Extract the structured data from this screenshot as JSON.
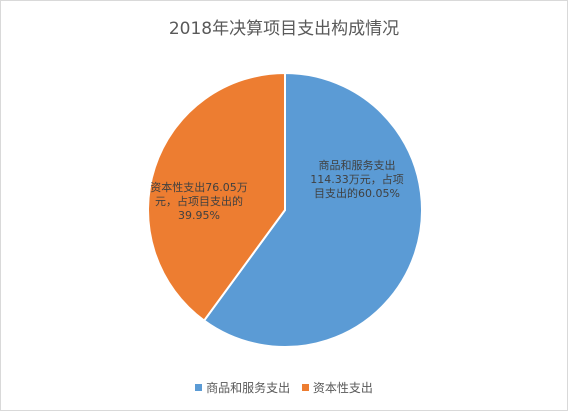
{
  "chart_data": {
    "type": "pie",
    "title": "2018年决算项目支出构成情况",
    "categories": [
      "商品和服务支出",
      "资本性支出"
    ],
    "values": [
      114.33,
      76.05
    ],
    "percentages": [
      60.05,
      39.95
    ],
    "unit": "万元",
    "colors": [
      "#5b9bd5",
      "#ed7d31"
    ],
    "slice_labels": [
      [
        "商品和服务支出",
        "114.33万元，占项",
        "目支出的60.05%"
      ],
      [
        "资本性支出76.05万",
        "元，占项目支出的",
        "39.95%"
      ]
    ],
    "legend": {
      "position": "bottom",
      "items": [
        "商品和服务支出",
        "资本性支出"
      ]
    },
    "start_angle_deg": 0,
    "direction": "clockwise"
  }
}
